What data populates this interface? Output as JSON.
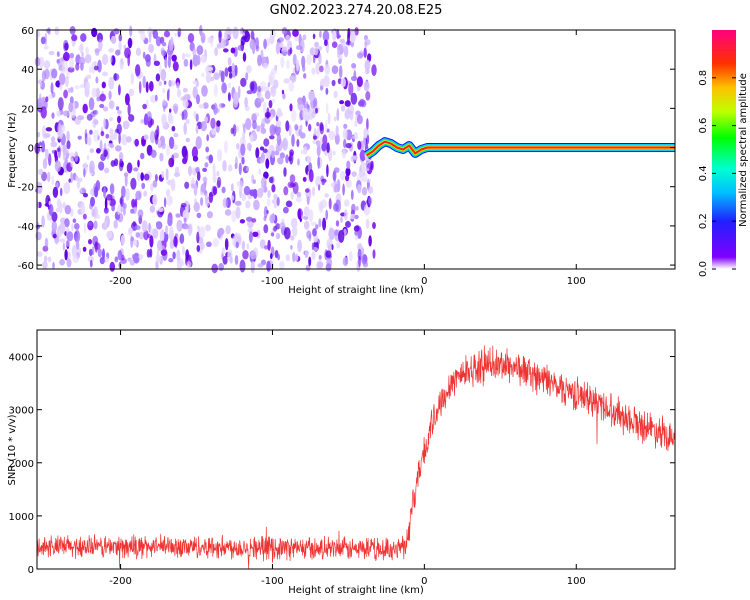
{
  "title": "GN02.2023.274.20.08.E25",
  "chart_data": [
    {
      "type": "heatmap",
      "xlabel": "Height of straight line (km)",
      "ylabel": "Frequency (Hz)",
      "xlim": [
        -255,
        165
      ],
      "ylim": [
        -62,
        60
      ],
      "x_ticks": [
        -200,
        -100,
        0,
        100
      ],
      "y_ticks": [
        -60,
        -40,
        -20,
        0,
        20,
        40,
        60
      ],
      "noise_region_x": [
        -255,
        -33
      ],
      "signal_path": {
        "x": [
          -38,
          -34,
          -30,
          -26,
          -22,
          -18,
          -14,
          -10,
          -6,
          -2,
          2,
          165
        ],
        "y": [
          -4,
          -2,
          1,
          3,
          2,
          0,
          -1,
          1,
          -3,
          -1,
          0,
          0
        ]
      },
      "colorbar": {
        "label": "Normalized spectral amplitude",
        "range": [
          0,
          1
        ],
        "ticks": [
          0.0,
          0.2,
          0.4,
          0.6,
          0.8
        ]
      }
    },
    {
      "type": "line",
      "xlabel": "Height of straight line (km)",
      "ylabel": "SNR (10 * v/v)",
      "xlim": [
        -255,
        165
      ],
      "ylim": [
        0,
        4500
      ],
      "x_ticks": [
        -200,
        -100,
        0,
        100
      ],
      "y_ticks": [
        0,
        1000,
        2000,
        3000,
        4000
      ],
      "color": "#ee3333",
      "envelope": {
        "x": [
          -255,
          -200,
          -150,
          -100,
          -60,
          -20,
          -12,
          -8,
          -4,
          0,
          5,
          10,
          15,
          20,
          30,
          40,
          50,
          60,
          80,
          100,
          120,
          140,
          165
        ],
        "y": [
          420,
          420,
          420,
          400,
          380,
          370,
          500,
          1100,
          1800,
          2200,
          2700,
          3100,
          3400,
          3600,
          3750,
          3820,
          3850,
          3800,
          3550,
          3300,
          3050,
          2750,
          2500
        ]
      },
      "noise_amplitude": 200
    }
  ]
}
